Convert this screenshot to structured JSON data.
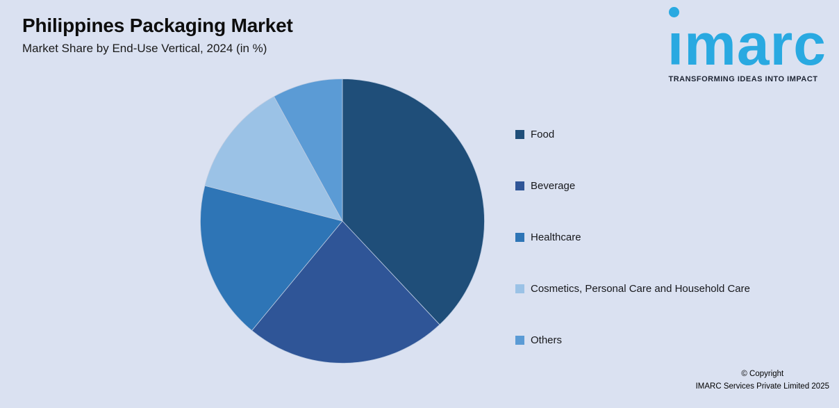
{
  "header": {
    "title": "Philippines Packaging Market",
    "subtitle": "Market Share by End-Use Vertical, 2024 (in %)"
  },
  "logo": {
    "text": "imarc",
    "tagline": "TRANSFORMING IDEAS INTO IMPACT",
    "brand_color": "#29A9E1"
  },
  "chart_data": {
    "type": "pie",
    "title": "Philippines Packaging Market",
    "subtitle": "Market Share by End-Use Vertical, 2024 (in %)",
    "unit": "%",
    "start_angle_deg": 0,
    "direction": "clockwise",
    "legend_position": "right",
    "data_labels_visible": false,
    "background_color": "#DAE1F1",
    "slices": [
      {
        "label": "Food",
        "value": 38,
        "color": "#1F4E79"
      },
      {
        "label": "Beverage",
        "value": 23,
        "color": "#2F5597"
      },
      {
        "label": "Healthcare",
        "value": 18,
        "color": "#2E75B6"
      },
      {
        "label": "Cosmetics, Personal Care and Household Care",
        "value": 13,
        "color": "#9BC2E6"
      },
      {
        "label": "Others",
        "value": 8,
        "color": "#5B9BD5"
      }
    ]
  },
  "footer": {
    "copyright_line1": "© Copyright",
    "copyright_line2": "IMARC Services Private Limited 2025"
  }
}
